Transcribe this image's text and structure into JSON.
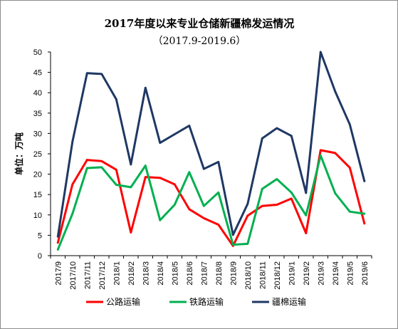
{
  "chart_data": {
    "type": "line",
    "title": "2017年度以来专业仓储新疆棉发运情况",
    "subtitle": "（2017.9-2019.6）",
    "ylabel": "单位：万吨",
    "xlabel": "",
    "ylim": [
      0,
      50
    ],
    "yticks": [
      0,
      5,
      10,
      15,
      20,
      25,
      30,
      35,
      40,
      45,
      50
    ],
    "grid": false,
    "legend_position": "bottom",
    "categories": [
      "2017/9",
      "2017/10",
      "2017/11",
      "2017/12",
      "2018/1",
      "2018/2",
      "2018/3",
      "2018/4",
      "2018/5",
      "2018/6",
      "2018/7",
      "2018/8",
      "2018/9",
      "2018/10",
      "2018/11",
      "2018/12",
      "2019/1",
      "2019/2",
      "2019/3",
      "2019/4",
      "2019/5",
      "2019/6"
    ],
    "series": [
      {
        "name": "公路运输",
        "color": "#ff0000",
        "values": [
          3.2,
          17.5,
          23.5,
          23.2,
          21.1,
          5.7,
          19.3,
          19.1,
          17.5,
          11.4,
          9.2,
          7.6,
          2.4,
          9.8,
          12.2,
          12.5,
          14.0,
          5.5,
          25.9,
          25.2,
          21.6,
          7.9
        ]
      },
      {
        "name": "铁路运输",
        "color": "#00b050",
        "values": [
          1.5,
          10.3,
          21.5,
          21.7,
          17.4,
          16.8,
          22.1,
          8.7,
          12.5,
          20.5,
          12.2,
          15.5,
          2.7,
          2.9,
          16.4,
          18.8,
          15.5,
          9.9,
          24.6,
          15.3,
          10.8,
          10.3
        ]
      },
      {
        "name": "疆棉运输",
        "color": "#1f3864",
        "values": [
          4.7,
          28.0,
          44.8,
          44.6,
          38.4,
          22.4,
          41.2,
          27.7,
          29.8,
          31.9,
          21.3,
          23.0,
          5.1,
          12.7,
          28.8,
          31.3,
          29.4,
          15.4,
          50.0,
          40.3,
          32.2,
          18.3
        ]
      }
    ]
  }
}
